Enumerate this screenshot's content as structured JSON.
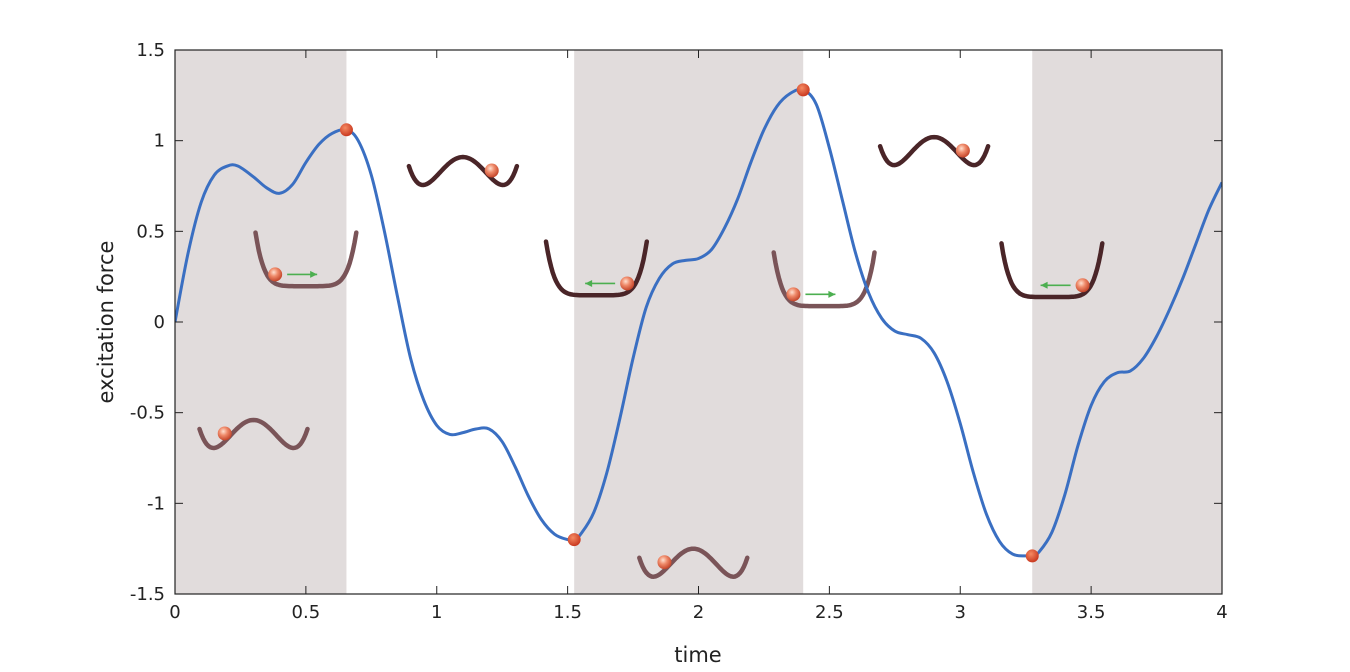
{
  "chart_data": {
    "type": "line",
    "xlabel": "time",
    "ylabel": "excitation force",
    "xlim": [
      0,
      4
    ],
    "ylim": [
      -1.5,
      1.5
    ],
    "x_ticks": [
      0,
      0.5,
      1,
      1.5,
      2,
      2.5,
      3,
      3.5,
      4
    ],
    "x_tick_labels": [
      "0",
      "0.5",
      "1",
      "1.5",
      "2",
      "2.5",
      "3",
      "3.5",
      "4"
    ],
    "y_ticks": [
      -1.5,
      -1,
      -0.5,
      0,
      0.5,
      1,
      1.5
    ],
    "y_tick_labels": [
      "-1.5",
      "-1",
      "-0.5",
      "0",
      "0.5",
      "1",
      "1.5"
    ],
    "grid": false,
    "line_color": "#3a6fc2",
    "shade_color": "#e1dcdc",
    "marker_color": "#d94a2b",
    "well_color": "#4a2528",
    "well_color_light": "#7a5458",
    "arrow_color": "#4caf50",
    "shaded_intervals": [
      [
        0,
        0.655
      ],
      [
        1.525,
        2.4
      ],
      [
        3.275,
        4.0
      ]
    ],
    "series": [
      {
        "x": [
          0,
          0.05,
          0.1,
          0.15,
          0.2,
          0.24,
          0.3,
          0.35,
          0.4,
          0.45,
          0.5,
          0.55,
          0.6,
          0.655,
          0.7,
          0.75,
          0.8,
          0.85,
          0.9,
          0.95,
          1.0,
          1.05,
          1.1,
          1.15,
          1.2,
          1.25,
          1.3,
          1.35,
          1.4,
          1.45,
          1.5,
          1.525,
          1.55,
          1.6,
          1.65,
          1.7,
          1.75,
          1.8,
          1.85,
          1.9,
          1.95,
          2.0,
          2.05,
          2.1,
          2.15,
          2.2,
          2.25,
          2.3,
          2.35,
          2.4,
          2.45,
          2.5,
          2.55,
          2.6,
          2.65,
          2.7,
          2.75,
          2.8,
          2.85,
          2.9,
          2.95,
          3.0,
          3.05,
          3.1,
          3.15,
          3.2,
          3.25,
          3.275,
          3.3,
          3.35,
          3.4,
          3.45,
          3.5,
          3.55,
          3.6,
          3.65,
          3.7,
          3.75,
          3.8,
          3.85,
          3.9,
          3.95,
          4.0
        ],
        "y": [
          0,
          0.38,
          0.66,
          0.81,
          0.86,
          0.86,
          0.8,
          0.74,
          0.71,
          0.76,
          0.88,
          0.98,
          1.04,
          1.06,
          1.0,
          0.81,
          0.5,
          0.14,
          -0.2,
          -0.43,
          -0.57,
          -0.62,
          -0.61,
          -0.59,
          -0.59,
          -0.66,
          -0.8,
          -0.96,
          -1.09,
          -1.17,
          -1.2,
          -1.2,
          -1.17,
          -1.05,
          -0.83,
          -0.53,
          -0.2,
          0.08,
          0.24,
          0.32,
          0.34,
          0.35,
          0.4,
          0.52,
          0.68,
          0.88,
          1.06,
          1.19,
          1.26,
          1.28,
          1.2,
          0.96,
          0.67,
          0.38,
          0.16,
          0.02,
          -0.05,
          -0.07,
          -0.09,
          -0.17,
          -0.33,
          -0.56,
          -0.83,
          -1.06,
          -1.21,
          -1.28,
          -1.29,
          -1.29,
          -1.27,
          -1.16,
          -0.95,
          -0.68,
          -0.46,
          -0.33,
          -0.28,
          -0.27,
          -0.2,
          -0.08,
          0.07,
          0.24,
          0.43,
          0.62,
          0.77
        ]
      }
    ],
    "markers": [
      {
        "x": 0.655,
        "y": 1.06
      },
      {
        "x": 1.525,
        "y": -1.2
      },
      {
        "x": 2.4,
        "y": 1.28
      },
      {
        "x": 3.275,
        "y": -1.29
      }
    ],
    "insets": [
      {
        "shape": "double",
        "cx": 0.3,
        "cy": -0.43,
        "ball": "left",
        "light": true,
        "arrow": "none"
      },
      {
        "shape": "flat",
        "cx": 0.5,
        "cy": 0.33,
        "ball": "left",
        "light": true,
        "arrow": "right"
      },
      {
        "shape": "double",
        "cx": 1.1,
        "cy": 1.02,
        "ball": "right",
        "light": false,
        "arrow": "none"
      },
      {
        "shape": "flat",
        "cx": 1.61,
        "cy": 0.28,
        "ball": "right",
        "light": false,
        "arrow": "left"
      },
      {
        "shape": "double",
        "cx": 1.98,
        "cy": -1.14,
        "ball": "left",
        "light": true,
        "arrow": "none"
      },
      {
        "shape": "flat",
        "cx": 2.48,
        "cy": 0.22,
        "ball": "left",
        "light": true,
        "arrow": "right"
      },
      {
        "shape": "double",
        "cx": 2.9,
        "cy": 1.13,
        "ball": "right",
        "light": false,
        "arrow": "none"
      },
      {
        "shape": "flat",
        "cx": 3.35,
        "cy": 0.27,
        "ball": "right",
        "light": false,
        "arrow": "left"
      }
    ]
  }
}
